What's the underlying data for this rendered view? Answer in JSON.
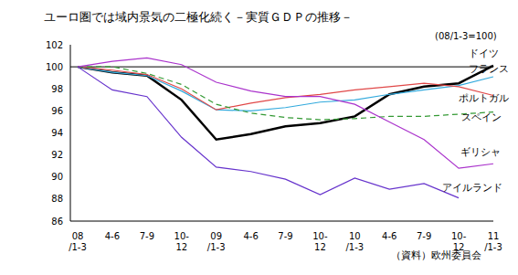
{
  "chart_data": {
    "type": "line",
    "title": "ユーロ圏では域内景気の二極化続く－実質ＧＤＰの推移－",
    "subtitle": "(08/1-3=100)",
    "source": "（資料）欧州委員会",
    "categories": [
      "08\n/1-3",
      "4-6",
      "7-9",
      "10-\n12",
      "09\n/1-3",
      "4-6",
      "7-9",
      "10-\n12",
      "10\n/1-3",
      "4-6",
      "7-9",
      "10-\n12",
      "11\n/1-3"
    ],
    "reference_line": 100,
    "ylim": [
      86,
      102
    ],
    "yticks": [
      86,
      88,
      90,
      92,
      94,
      96,
      98,
      100,
      102
    ],
    "grid": false,
    "series": [
      {
        "name": "ドイツ",
        "color": "#000000",
        "line_style": "solid",
        "values": [
          100,
          99.5,
          99.2,
          97.0,
          93.4,
          93.9,
          94.6,
          94.9,
          95.5,
          97.5,
          98.2,
          98.5,
          100.1
        ]
      },
      {
        "name": "フランス",
        "color": "#33aadd",
        "line_style": "solid",
        "values": [
          100,
          99.5,
          99.2,
          97.8,
          96.1,
          96.0,
          96.3,
          96.8,
          97.0,
          97.5,
          97.9,
          98.3,
          99.1
        ]
      },
      {
        "name": "ポルトガル",
        "color": "#e04848",
        "line_style": "solid",
        "values": [
          100,
          99.7,
          99.3,
          98.0,
          96.1,
          96.7,
          97.2,
          97.5,
          97.9,
          98.2,
          98.5,
          98.2,
          97.4
        ]
      },
      {
        "name": "スペイン",
        "color": "#339933",
        "line_style": "dashed",
        "values": [
          100,
          100.0,
          99.4,
          98.4,
          96.6,
          95.8,
          95.4,
          95.2,
          95.3,
          95.5,
          95.5,
          95.7,
          95.9
        ]
      },
      {
        "name": "ギリシャ",
        "color": "#aa33cc",
        "line_style": "solid",
        "values": [
          100,
          100.5,
          100.8,
          100.2,
          98.6,
          97.8,
          97.3,
          97.3,
          96.6,
          95.0,
          93.4,
          90.8,
          91.2
        ]
      },
      {
        "name": "アイルランド",
        "color": "#6633cc",
        "line_style": "solid",
        "values": [
          100,
          97.9,
          97.3,
          93.6,
          90.9,
          90.5,
          89.8,
          88.4,
          89.9,
          88.9,
          89.4,
          88.1,
          null
        ]
      }
    ]
  }
}
